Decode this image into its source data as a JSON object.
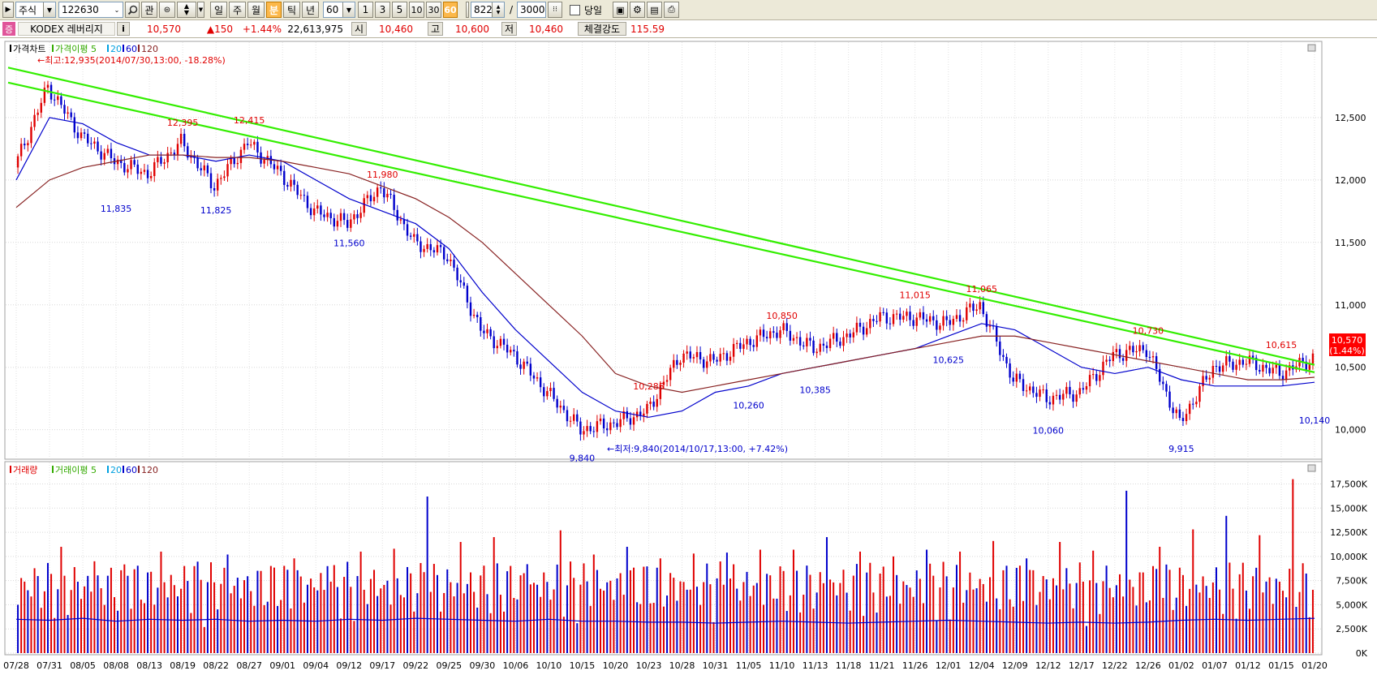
{
  "toolbar": {
    "market": "주식",
    "code": "122630",
    "fav": "관",
    "periods": [
      "일",
      "주",
      "월",
      "분",
      "틱",
      "년"
    ],
    "selected_period": "분",
    "interval": "60",
    "quick": [
      "1",
      "3",
      "5",
      "10",
      "30",
      "60"
    ],
    "selected_quick": "60",
    "count": "822",
    "total": "3000",
    "slash": "/",
    "today_label": "당일"
  },
  "info": {
    "badge": "증",
    "name": "KODEX 레버리지",
    "info_icon": "i",
    "price": "10,570",
    "change": "▲150",
    "change_pct": "+1.44%",
    "volume": "22,613,975",
    "open_label": "시",
    "open": "10,460",
    "high_label": "고",
    "high": "10,600",
    "low_label": "저",
    "low": "10,460",
    "strength_label": "체결강도",
    "strength": "115.59"
  },
  "price_panel": {
    "legend": [
      {
        "text": "가격차트",
        "color": "#000000"
      },
      {
        "text": "가격이평 5",
        "color": "#33aa00"
      },
      {
        "text": "20",
        "color": "#00a0e0"
      },
      {
        "text": "60",
        "color": "#0000cc"
      },
      {
        "text": "120",
        "color": "#882222"
      }
    ],
    "max_note": "←최고:12,935(2014/07/30,13:00, -18.28%)",
    "min_note": "←최저:9,840(2014/10/17,13:00, +7.42%)",
    "current_label": "10,570",
    "current_pct": "(1.44%)",
    "current_color": "#ff0000"
  },
  "volume_panel": {
    "legend": [
      {
        "text": "거래량",
        "color": "#e00000"
      },
      {
        "text": "거래이평 5",
        "color": "#33aa00"
      },
      {
        "text": "20",
        "color": "#00a0e0"
      },
      {
        "text": "60",
        "color": "#0000cc"
      },
      {
        "text": "120",
        "color": "#882222"
      }
    ]
  },
  "chart_data": [
    {
      "type": "candlestick",
      "title": "가격차트",
      "yticks": [
        10000,
        10500,
        11000,
        11500,
        12000,
        12500
      ],
      "ytick_labels": [
        "10,000",
        "10,500",
        "11,000",
        "11,500",
        "12,000",
        "12,500"
      ],
      "ylim": [
        9790,
        12980
      ],
      "x": [
        "07/28",
        "07/31",
        "08/05",
        "08/08",
        "08/13",
        "08/19",
        "08/22",
        "08/27",
        "09/01",
        "09/04",
        "09/12",
        "09/17",
        "09/22",
        "09/25",
        "09/30",
        "10/06",
        "10/10",
        "10/15",
        "10/20",
        "10/23",
        "10/28",
        "10/31",
        "11/05",
        "11/10",
        "11/13",
        "11/18",
        "11/21",
        "11/26",
        "12/01",
        "12/04",
        "12/09",
        "12/12",
        "12/17",
        "12/22",
        "12/26",
        "01/02",
        "01/07",
        "01/12",
        "01/15",
        "01/20"
      ],
      "series": [
        {
          "name": "가격차트",
          "values": [
            12100,
            12750,
            12350,
            12150,
            12050,
            12300,
            11950,
            12300,
            12050,
            11750,
            11650,
            11950,
            11500,
            11400,
            10800,
            10600,
            10300,
            10000,
            10050,
            10150,
            10600,
            10550,
            10700,
            10800,
            10650,
            10750,
            10900,
            10900,
            10850,
            11000,
            10400,
            10250,
            10300,
            10600,
            10650,
            10050,
            10500,
            10550,
            10450,
            10570
          ]
        },
        {
          "name": "60",
          "values": [
            12000,
            12500,
            12450,
            12300,
            12200,
            12200,
            12150,
            12200,
            12150,
            12000,
            11850,
            11750,
            11650,
            11450,
            11100,
            10800,
            10550,
            10300,
            10150,
            10100,
            10150,
            10300,
            10350,
            10450,
            10500,
            10550,
            10600,
            10650,
            10750,
            10850,
            10800,
            10650,
            10500,
            10450,
            10500,
            10400,
            10350,
            10350,
            10350,
            10380
          ]
        },
        {
          "name": "120",
          "values": [
            11780,
            12000,
            12100,
            12150,
            12200,
            12200,
            12180,
            12180,
            12150,
            12100,
            12050,
            11950,
            11850,
            11700,
            11500,
            11250,
            11000,
            10750,
            10450,
            10350,
            10300,
            10350,
            10400,
            10450,
            10500,
            10550,
            10600,
            10650,
            10700,
            10750,
            10750,
            10700,
            10650,
            10600,
            10550,
            10500,
            10450,
            10400,
            10400,
            10420
          ]
        }
      ],
      "annotations": [
        {
          "text": "12,395",
          "x": "08/19",
          "y": 12395
        },
        {
          "text": "12,415",
          "x": "08/27",
          "y": 12415
        },
        {
          "text": "11,980",
          "x": "09/17",
          "y": 11980
        },
        {
          "text": "11,835",
          "x": "08/08",
          "y": 11835
        },
        {
          "text": "11,825",
          "x": "08/22",
          "y": 11825
        },
        {
          "text": "11,560",
          "x": "09/12",
          "y": 11560
        },
        {
          "text": "10,285",
          "x": "10/23",
          "y": 10285
        },
        {
          "text": "9,840",
          "x": "10/15",
          "y": 9840
        },
        {
          "text": "10,850",
          "x": "11/10",
          "y": 10850
        },
        {
          "text": "10,260",
          "x": "11/05",
          "y": 10260
        },
        {
          "text": "10,385",
          "x": "11/13",
          "y": 10385
        },
        {
          "text": "11,015",
          "x": "11/26",
          "y": 11015
        },
        {
          "text": "10,625",
          "x": "12/01",
          "y": 10625
        },
        {
          "text": "11,065",
          "x": "12/04",
          "y": 11065
        },
        {
          "text": "10,060",
          "x": "12/12",
          "y": 10060
        },
        {
          "text": "10,730",
          "x": "12/26",
          "y": 10730
        },
        {
          "text": "9,915",
          "x": "01/02",
          "y": 9915
        },
        {
          "text": "10,615",
          "x": "01/15",
          "y": 10615
        },
        {
          "text": "10,140",
          "x": "01/20",
          "y": 10140
        }
      ],
      "trendlines": [
        {
          "color": "#33ee00",
          "from": {
            "x": "07/28",
            "y": 12900
          },
          "to": {
            "x": "01/20",
            "y": 10520
          }
        },
        {
          "color": "#33ee00",
          "from": {
            "x": "07/28",
            "y": 12780
          },
          "to": {
            "x": "01/20",
            "y": 10460
          }
        }
      ],
      "grid": true,
      "legend": "top-left"
    },
    {
      "type": "bar",
      "title": "거래량",
      "yticks": [
        0,
        2500,
        5000,
        7500,
        10000,
        12500,
        15000,
        17500
      ],
      "ytick_labels": [
        "0K",
        "2,500K",
        "5,000K",
        "7,500K",
        "10,000K",
        "12,500K",
        "15,000K",
        "17,500K"
      ],
      "ylim": [
        0,
        18300
      ],
      "x": [
        "07/28",
        "07/31",
        "08/05",
        "08/08",
        "08/13",
        "08/19",
        "08/22",
        "08/27",
        "09/01",
        "09/04",
        "09/12",
        "09/17",
        "09/22",
        "09/25",
        "09/30",
        "10/06",
        "10/10",
        "10/15",
        "10/20",
        "10/23",
        "10/28",
        "10/31",
        "11/05",
        "11/10",
        "11/13",
        "11/18",
        "11/21",
        "11/26",
        "12/01",
        "12/04",
        "12/09",
        "12/12",
        "12/17",
        "12/22",
        "12/26",
        "01/02",
        "01/07",
        "01/12",
        "01/15",
        "01/20"
      ],
      "series": [
        {
          "name": "거래량",
          "values": [
            6500,
            11000,
            9500,
            8000,
            10500,
            9000,
            10200,
            8500,
            9800,
            9000,
            10500,
            10800,
            16200,
            11500,
            12000,
            9200,
            12700,
            10200,
            11000,
            9800,
            10300,
            10400,
            10700,
            10700,
            12000,
            10500,
            10000,
            10700,
            10500,
            11600,
            9800,
            11500,
            10600,
            16800,
            11000,
            12800,
            14200,
            12200,
            18000,
            9900
          ]
        },
        {
          "name": "60",
          "values": [
            3500,
            3400,
            3600,
            3300,
            3500,
            3400,
            3500,
            3300,
            3400,
            3300,
            3500,
            3400,
            3600,
            3500,
            3400,
            3300,
            3500,
            3300,
            3300,
            3200,
            3200,
            3100,
            3200,
            3300,
            3200,
            3100,
            3200,
            3300,
            3400,
            3300,
            3200,
            3100,
            3200,
            3100,
            3200,
            3400,
            3500,
            3400,
            3500,
            3600
          ]
        }
      ],
      "grid": true,
      "legend": "top-left"
    }
  ]
}
